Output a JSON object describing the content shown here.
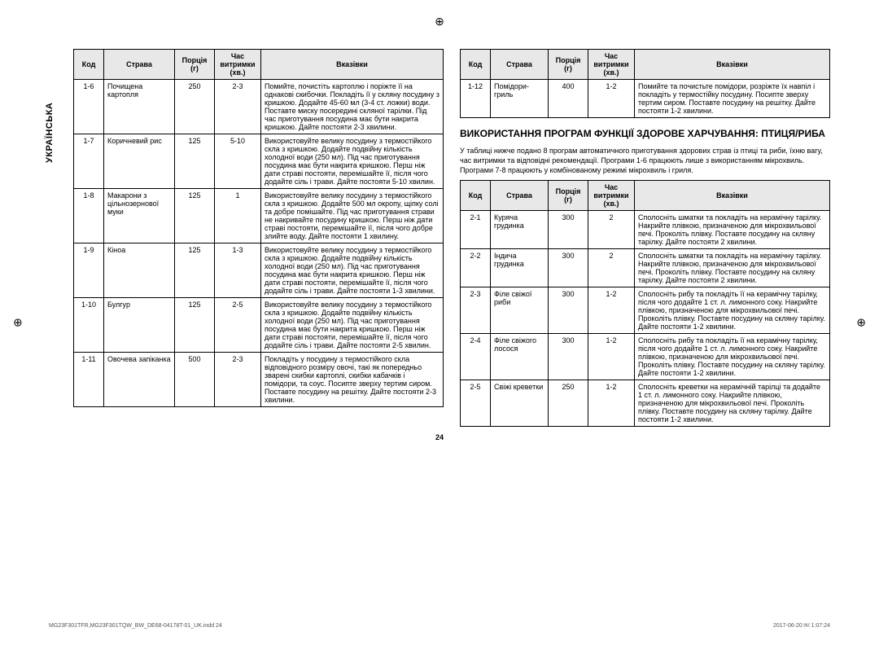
{
  "sideLabel": "УКРАЇНСЬКА",
  "regMark": "⊕",
  "headers": {
    "code": "Код",
    "dish": "Страва",
    "portion": "Порція (г)",
    "time": "Час витримки (хв.)",
    "notes": "Вказівки"
  },
  "table1": {
    "rows": [
      {
        "code": "1-6",
        "dish": "Почищена картопля",
        "portion": "250",
        "time": "2-3",
        "notes": "Помийте, почистіть картоплю і поріжте її на однакові скибочки. Покладіть її у скляну посудину з кришкою. Додайте 45-60 мл (3-4 ст. ложки) води. Поставте миску посередині скляної тарілки. Під час приготування посудина має бути накрита кришкою. Дайте постояти 2-3 хвилини."
      },
      {
        "code": "1-7",
        "dish": "Коричневий рис",
        "portion": "125",
        "time": "5-10",
        "notes": "Використовуйте велику посудину з термостійкого скла з кришкою. Додайте подвійну кількість холодної води (250 мл). Під час приготування посудина має бути накрита кришкою. Перш ніж дати страві постояти, перемішайте її, після чого додайте сіль і трави. Дайте постояти 5-10 хвилин."
      },
      {
        "code": "1-8",
        "dish": "Макарони з цільнозернової муки",
        "portion": "125",
        "time": "1",
        "notes": "Використовуйте велику посудину з термостійкого скла з кришкою. Додайте 500 мл окропу, щіпку солі та добре помішайте. Під час приготування страви не накривайте посудину кришкою. Перш ніж дати страві постояти, перемішайте її, після чого добре злийте воду. Дайте постояти 1 хвилину."
      },
      {
        "code": "1-9",
        "dish": "Кіноа",
        "portion": "125",
        "time": "1-3",
        "notes": "Використовуйте велику посудину з термостійкого скла з кришкою. Додайте подвійну кількість холодної води (250 мл). Під час приготування посудина має бути накрита кришкою. Перш ніж дати страві постояти, перемішайте її, після чого додайте сіль і трави. Дайте постояти 1-3 хвилини."
      },
      {
        "code": "1-10",
        "dish": "Булгур",
        "portion": "125",
        "time": "2-5",
        "notes": "Використовуйте велику посудину з термостійкого скла з кришкою. Додайте подвійну кількість холодної води (250 мл). Під час приготування посудина має бути накрита кришкою. Перш ніж дати страві постояти, перемішайте її, після чого додайте сіль і трави. Дайте постояти 2-5 хвилин."
      },
      {
        "code": "1-11",
        "dish": "Овочева запіканка",
        "portion": "500",
        "time": "2-3",
        "notes": "Покладіть у посудину з термостійкого скла відповідного розміру овочі, такі як попередньо зварені скибки картоплі, скибки кабачків і помідори, та соус. Посипте зверху тертим сиром. Поставте посудину на решітку. Дайте постояти 2-3 хвилини."
      }
    ]
  },
  "table2": {
    "rows": [
      {
        "code": "1-12",
        "dish": "Помідори-гриль",
        "portion": "400",
        "time": "1-2",
        "notes": "Помийте та почистьте помідори, розріжте їх навпіл і покладіть у термостійку посудину. Посипте зверху тертим сиром. Поставте посудину на решітку. Дайте постояти 1-2 хвилини."
      }
    ]
  },
  "section": {
    "heading": "ВИКОРИСТАННЯ ПРОГРАМ ФУНКЦІЇ ЗДОРОВЕ ХАРЧУВАННЯ: ПТИЦЯ/РИБА",
    "intro": "У таблиці нижче подано 8 програм автоматичного приготування здорових страв із птиці та риби, їхню вагу, час витримки та відповідні рекомендації. Програми 1-6 працюють лише з використанням мікрохвиль. Програми 7-8 працюють у комбінованому режимі мікрохвиль і гриля."
  },
  "table3": {
    "rows": [
      {
        "code": "2-1",
        "dish": "Куряча грудинка",
        "portion": "300",
        "time": "2",
        "notes": "Сполосніть шматки та покладіть на керамічну тарілку. Накрийте плівкою, призначеною для мікрохвильової печі. Проколіть плівку. Поставте посудину на скляну тарілку. Дайте постояти 2 хвилини."
      },
      {
        "code": "2-2",
        "dish": "Індича грудинка",
        "portion": "300",
        "time": "2",
        "notes": "Сполосніть шматки та покладіть на керамічну тарілку. Накрийте плівкою, призначеною для мікрохвильової печі. Проколіть плівку. Поставте посудину на скляну тарілку. Дайте постояти 2 хвилини."
      },
      {
        "code": "2-3",
        "dish": "Філе свіжої риби",
        "portion": "300",
        "time": "1-2",
        "notes": "Сполосніть рибу та покладіть її на керамічну тарілку, після чого додайте 1 ст. л. лимонного соку. Накрийте плівкою, призначеною для мікрохвильової печі. Проколіть плівку. Поставте посудину на скляну тарілку. Дайте постояти 1-2 хвилини."
      },
      {
        "code": "2-4",
        "dish": "Філе свіжого лосося",
        "portion": "300",
        "time": "1-2",
        "notes": "Сполосніть рибу та покладіть її на керамічну тарілку, після чого додайте 1 ст. л. лимонного соку. Накрийте плівкою, призначеною для мікрохвильової печі. Проколіть плівку. Поставте посудину на скляну тарілку. Дайте постояти 1-2 хвилини."
      },
      {
        "code": "2-5",
        "dish": "Свіжі креветки",
        "portion": "250",
        "time": "1-2",
        "notes": "Сполосніть креветки на керамічній тарілці та додайте 1 ст. л. лимонного соку. Накрийте плівкою, призначеною для мікрохвильової печі. Проколіть плівку. Поставте посудину на скляну тарілку. Дайте постояти 1-2 хвилини."
      }
    ]
  },
  "pageNum": "24",
  "footer": {
    "left": "MG23F301TFR,MG23F301TQW_BW_DE68-04178T-01_UK.indd   24",
    "right": "2017-06-20   ￼ 1:07:24"
  }
}
